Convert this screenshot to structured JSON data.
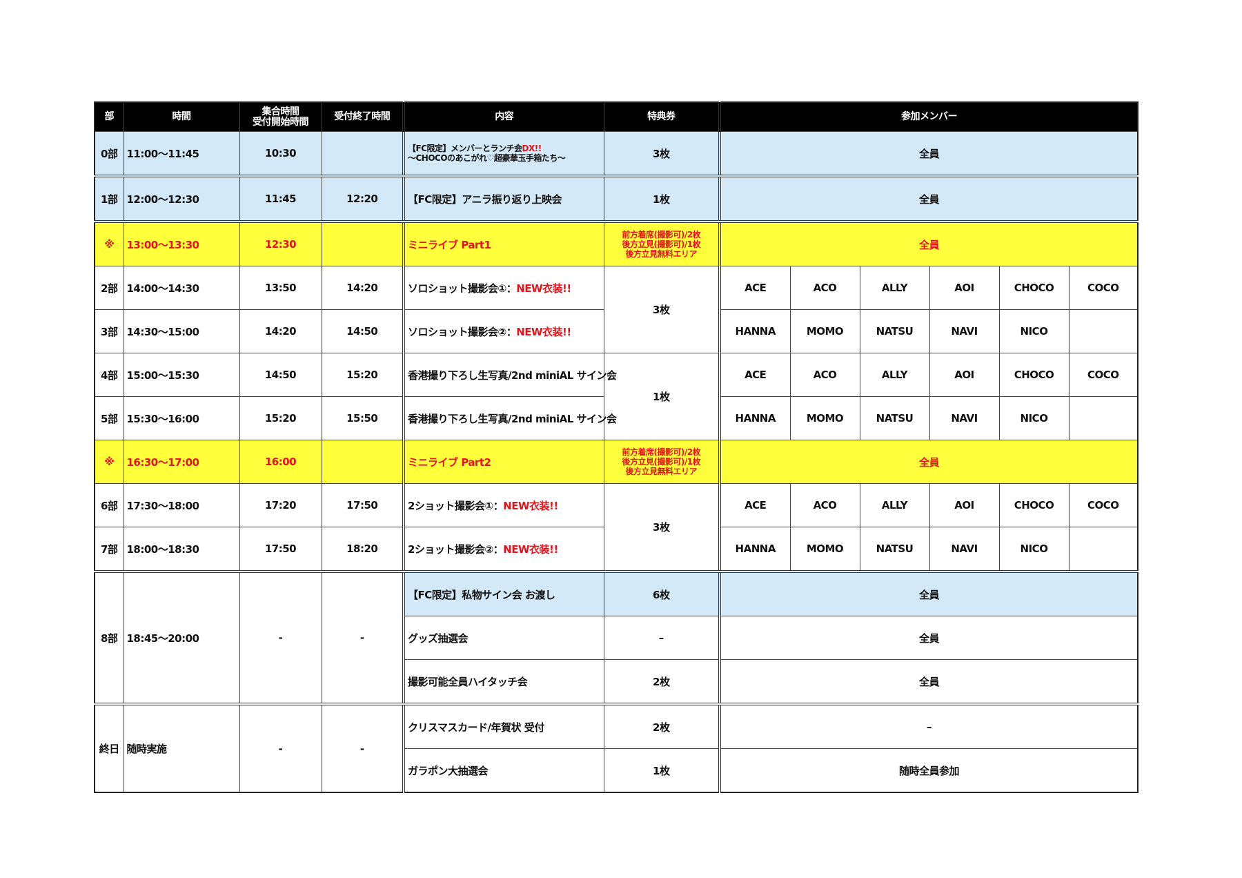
{
  "header": {
    "bu": "部",
    "time": "時間",
    "gather_1": "集合時間",
    "gather_2": "受付開始時間",
    "close": "受付終了時間",
    "content": "内容",
    "ticket": "特典券",
    "members": "参加メンバー"
  },
  "colors": {
    "blue": "#d3e9f7",
    "yellow": "#ffff3c",
    "red": "#e5141c",
    "header": "#000000"
  },
  "rows": [
    {
      "bu": "0部",
      "time": "11:00～11:45",
      "gather": "10:30",
      "content": "【FC限定】メンバーとランチ会",
      "content_red": "DX!!",
      "content_2": "～CHOCOのあこがれ♡超豪華玉手箱たち～",
      "ticket": "3枚",
      "members": "全員"
    },
    {
      "bu": "1部",
      "time": "12:00～12:30",
      "gather": "11:45",
      "close": "12:20",
      "content": "【FC限定】アニラ振り返り上映会",
      "ticket": "1枚",
      "members": "全員"
    },
    {
      "bu": "※",
      "time": "13:00～13:30",
      "gather": "12:30",
      "content": "ミニライブ Part1",
      "ticket_1": "前方着席(撮影可)/2枚",
      "ticket_2": "後方立見(撮影可)/1枚",
      "ticket_3": "後方立見無料エリア",
      "members": "全員"
    },
    {
      "bu": "2部",
      "time": "14:00～14:30",
      "gather": "13:50",
      "close": "14:20",
      "content": "ソロショット撮影会①：",
      "content_red": "NEW衣装!!",
      "ticket": "3枚"
    },
    {
      "bu": "3部",
      "time": "14:30～15:00",
      "gather": "14:20",
      "close": "14:50",
      "content": "ソロショット撮影会②：",
      "content_red": "NEW衣装!!"
    },
    {
      "bu": "4部",
      "time": "15:00～15:30",
      "gather": "14:50",
      "close": "15:20",
      "content": "香港撮り下ろし生写真/2nd miniAL サイン会",
      "ticket": "1枚"
    },
    {
      "bu": "5部",
      "time": "15:30～16:00",
      "gather": "15:20",
      "close": "15:50",
      "content": "香港撮り下ろし生写真/2nd miniAL サイン会"
    },
    {
      "bu": "※",
      "time": "16:30～17:00",
      "gather": "16:00",
      "content": "ミニライブ Part2",
      "ticket_1": "前方着席(撮影可)/2枚",
      "ticket_2": "後方立見(撮影可)/1枚",
      "ticket_3": "後方立見無料エリア",
      "members": "全員"
    },
    {
      "bu": "6部",
      "time": "17:30～18:00",
      "gather": "17:20",
      "close": "17:50",
      "content": "2ショット撮影会①：",
      "content_red": "NEW衣装!!",
      "ticket": "3枚"
    },
    {
      "bu": "7部",
      "time": "18:00～18:30",
      "gather": "17:50",
      "close": "18:20",
      "content": "2ショット撮影会②：",
      "content_red": "NEW衣装!!"
    },
    {
      "bu": "8部",
      "time": "18:45～20:00",
      "gather": "-",
      "close": "-",
      "items": [
        {
          "content": "【FC限定】私物サイン会 お渡し",
          "ticket": "6枚",
          "members": "全員"
        },
        {
          "content": "グッズ抽選会",
          "ticket": "–",
          "members": "全員"
        },
        {
          "content": "撮影可能全員ハイタッチ会",
          "ticket": "2枚",
          "members": "全員"
        }
      ]
    },
    {
      "bu": "終日",
      "time": "随時実施",
      "gather": "-",
      "close": "-",
      "items": [
        {
          "content": "クリスマスカード/年賀状 受付",
          "ticket": "2枚",
          "members": "–"
        },
        {
          "content": "ガラポン大抽選会",
          "ticket": "1枚",
          "members": "随時全員参加"
        }
      ]
    }
  ],
  "member_groups": {
    "a": [
      "ACE",
      "ACO",
      "ALLY",
      "AOI",
      "CHOCO",
      "COCO"
    ],
    "b": [
      "HANNA",
      "MOMO",
      "NATSU",
      "NAVI",
      "NICO"
    ]
  }
}
